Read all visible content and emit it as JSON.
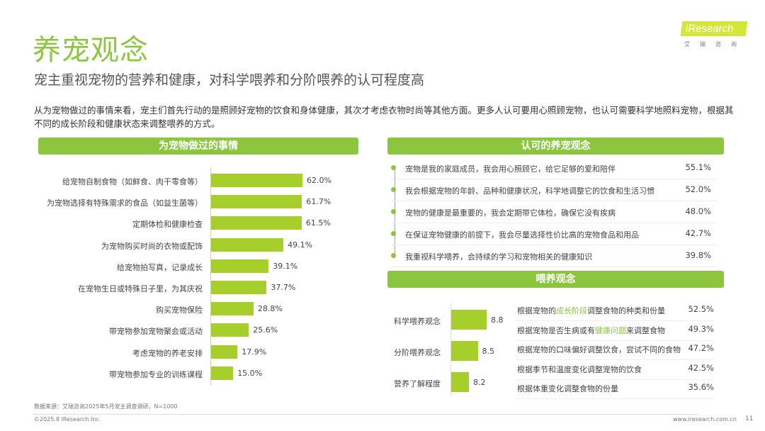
{
  "header": {
    "title": "养宠观念",
    "subtitle": "宠主重视宠物的营养和健康，对科学喂养和分阶喂养的认可程度高",
    "intro": "从为宠物做过的事情来看，宠主们首先行动的是照顾好宠物的饮食和身体健康，其次才考虑衣物时尚等其他方面。更多人认可要用心照顾宠物，也认可需要科学地照料宠物，根据其不同的成长阶段和健康状态来调整喂养的方式。"
  },
  "logo": {
    "text": "iResearch",
    "cn": "艾瑞咨询"
  },
  "colors": {
    "accent": "#8cc63f",
    "bar": "#a7cf2b"
  },
  "chart_data": [
    {
      "type": "bar",
      "orientation": "horizontal",
      "title": "为宠物做过的事情",
      "categories": [
        "给宠物自制食物（如鲜食、肉干零食等）",
        "为宠物选择有特殊需求的食品（如益生菌等）",
        "定期体检和健康检查",
        "为宠物购买时尚的衣物或配饰",
        "给宠物拍写真，记录成长",
        "在宠物生日或特殊日子里，为其庆祝",
        "购买宠物保险",
        "带宠物参加宠物聚会或活动",
        "考虑宠物的养老安排",
        "带宠物参加专业的训练课程"
      ],
      "values": [
        62.0,
        61.7,
        61.5,
        49.1,
        39.1,
        37.7,
        28.8,
        25.6,
        17.9,
        15.0
      ],
      "labels": [
        "62.0%",
        "61.7%",
        "61.5%",
        "49.1%",
        "39.1%",
        "37.7%",
        "28.8%",
        "25.6%",
        "17.9%",
        "15.0%"
      ]
    },
    {
      "type": "table",
      "title": "认可的养宠观念",
      "rows": [
        {
          "text": "宠物是我的家庭成员，我会用心照顾它，给它足够的爱和陪伴",
          "value": "55.1%"
        },
        {
          "text": "我会根据宠物的年龄、品种和健康状况，科学地调整它的饮食和生活习惯",
          "value": "52.0%"
        },
        {
          "text": "宠物的健康是最重要的，我会定期带它体检，确保它没有疾病",
          "value": "48.0%"
        },
        {
          "text": "在保证宠物健康的前提下，我会尽量选择性价比高的宠物食品和用品",
          "value": "42.7%"
        },
        {
          "text": "我重视科学喂养，会持续的学习和宠物相关的健康知识",
          "value": "39.8%"
        }
      ]
    },
    {
      "type": "bar",
      "orientation": "horizontal",
      "title": "喂养观念",
      "categories": [
        "科学喂养观念",
        "分阶喂养观念",
        "营养了解程度"
      ],
      "values": [
        8.8,
        8.5,
        8.2
      ],
      "labels": [
        "8.8",
        "8.5",
        "8.2"
      ]
    },
    {
      "type": "table",
      "rows": [
        {
          "pre": "根据宠物的",
          "hl": "成长阶段",
          "post": "调整食物的种类和份量",
          "value": "52.5%"
        },
        {
          "pre": "根据宠物是否生病或有",
          "hl": "健康问题",
          "post": "来调整食物",
          "value": "49.3%"
        },
        {
          "pre": "根据宠物的口味偏好调整饮食，尝试不同的食物",
          "hl": "",
          "post": "",
          "value": "47.2%"
        },
        {
          "pre": "根据季节和温度变化调整宠物的饮食",
          "hl": "",
          "post": "",
          "value": "42.5%"
        },
        {
          "pre": "根据体重变化调整食物的份量",
          "hl": "",
          "post": "",
          "value": "35.6%"
        }
      ]
    }
  ],
  "footer": {
    "source": "数据来源：艾瑞咨询2025年5月宠主调查调研，N=1000",
    "copyright": "©2025.8 iResearch Inc.",
    "url": "www.iresearch.com.cn",
    "page": "11"
  }
}
